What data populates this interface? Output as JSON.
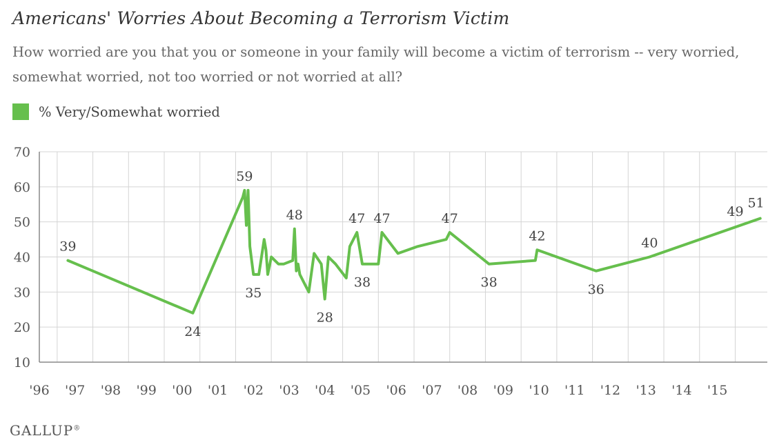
{
  "chart_data": {
    "type": "line",
    "title": "Americans' Worries About Becoming a Terrorism Victim",
    "subtitle": "How worried are you that you or someone in your family will become a victim of terrorism -- very worried, somewhat worried, not too worried or not worried at all?",
    "legend_position": "top-left",
    "grid": true,
    "xlabel": "",
    "ylabel": "",
    "ylim": [
      10,
      70
    ],
    "yticks": [
      10,
      20,
      30,
      40,
      50,
      60,
      70
    ],
    "x_tick_labels": [
      "'96",
      "'97",
      "'98",
      "'99",
      "'00",
      "'01",
      "'02",
      "'03",
      "'04",
      "'05",
      "'06",
      "'07",
      "'08",
      "'09",
      "'10",
      "'11",
      "'12",
      "'13",
      "'14",
      "'15"
    ],
    "x_tick_years": [
      1996,
      1997,
      1998,
      1999,
      2000,
      2001,
      2002,
      2003,
      2004,
      2005,
      2006,
      2007,
      2008,
      2009,
      2010,
      2011,
      2012,
      2013,
      2014,
      2015
    ],
    "xlim": [
      1996,
      2016.4
    ],
    "series": [
      {
        "name": "% Very/Somewhat worried",
        "color": "#66bf4d",
        "x": [
          1996.8,
          2000.3,
          2001.7,
          2001.75,
          2001.8,
          2001.85,
          2001.9,
          2002.0,
          2002.15,
          2002.3,
          2002.35,
          2002.4,
          2002.5,
          2002.6,
          2002.7,
          2002.85,
          2003.1,
          2003.15,
          2003.2,
          2003.25,
          2003.3,
          2003.4,
          2003.55,
          2003.7,
          2003.9,
          2004.0,
          2004.1,
          2004.3,
          2004.6,
          2004.7,
          2004.9,
          2005.05,
          2005.5,
          2005.6,
          2005.9,
          2006.05,
          2006.6,
          2007.4,
          2007.5,
          2008.6,
          2009.9,
          2009.95,
          2011.6,
          2013.1,
          2016.2
        ],
        "values": [
          39,
          24,
          57,
          59,
          49,
          59,
          43,
          35,
          35,
          45,
          42,
          35,
          40,
          39,
          38,
          38,
          39,
          48,
          36,
          38,
          35,
          33,
          30,
          41,
          38,
          28,
          40,
          38,
          34,
          43,
          47,
          38,
          38,
          47,
          43,
          41,
          43,
          45,
          47,
          38,
          39,
          42,
          36,
          40,
          51
        ]
      }
    ],
    "data_labels": [
      {
        "text": "39",
        "x": 1996.8,
        "y": 39,
        "pos": "above"
      },
      {
        "text": "24",
        "x": 2000.3,
        "y": 24,
        "pos": "below"
      },
      {
        "text": "59",
        "x": 2001.75,
        "y": 59,
        "pos": "above"
      },
      {
        "text": "35",
        "x": 2002.0,
        "y": 35,
        "pos": "below"
      },
      {
        "text": "48",
        "x": 2003.15,
        "y": 48,
        "pos": "above"
      },
      {
        "text": "28",
        "x": 2004.0,
        "y": 28,
        "pos": "below"
      },
      {
        "text": "47",
        "x": 2004.9,
        "y": 47,
        "pos": "above"
      },
      {
        "text": "38",
        "x": 2005.05,
        "y": 38,
        "pos": "below"
      },
      {
        "text": "47",
        "x": 2005.6,
        "y": 47,
        "pos": "above"
      },
      {
        "text": "47",
        "x": 2007.5,
        "y": 47,
        "pos": "above"
      },
      {
        "text": "38",
        "x": 2008.6,
        "y": 38,
        "pos": "below"
      },
      {
        "text": "42",
        "x": 2009.95,
        "y": 42,
        "pos": "above"
      },
      {
        "text": "36",
        "x": 2011.6,
        "y": 36,
        "pos": "below"
      },
      {
        "text": "40",
        "x": 2013.1,
        "y": 40,
        "pos": "above"
      },
      {
        "text": "49",
        "x": 2015.5,
        "y": 49,
        "pos": "above"
      },
      {
        "text": "51",
        "x": 2016.2,
        "y": 51,
        "pos": "above-right"
      }
    ]
  },
  "brand": "GALLUP",
  "brand_mark": "®"
}
